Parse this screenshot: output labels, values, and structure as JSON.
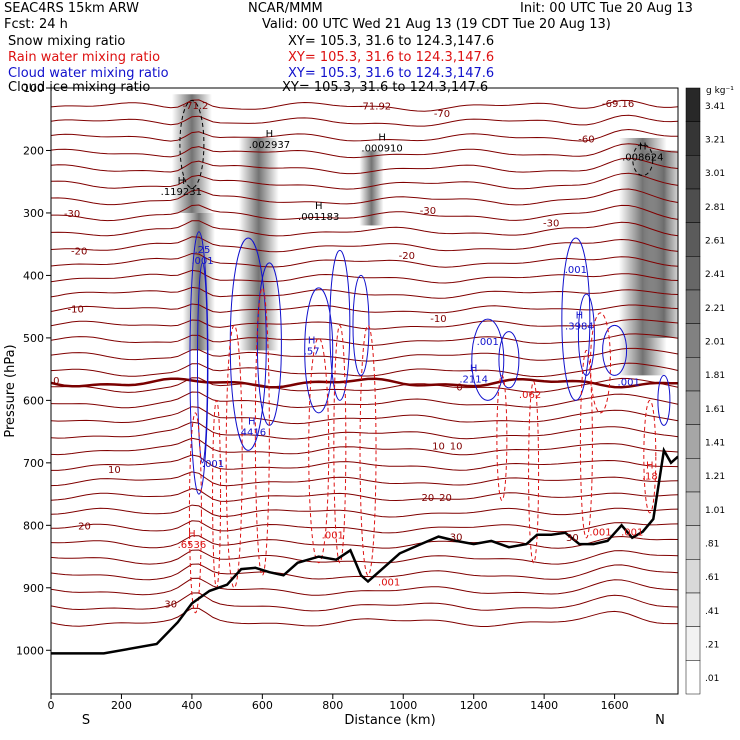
{
  "header": {
    "model": "SEAC4RS 15km ARW",
    "center": "NCAR/MMM",
    "init": "Init: 00 UTC Tue 20 Aug 13",
    "fcst": "Fcst:    24 h",
    "valid": "Valid: 00 UTC Wed 21 Aug 13 (19 CDT Tue 20 Aug 13)",
    "fields": [
      {
        "name": "Snow mixing ratio",
        "xy": "XY= 105.3, 31.6 to 124.3,147.6",
        "color": "#000000"
      },
      {
        "name": "Rain water mixing ratio",
        "xy": "XY= 105.3, 31.6 to 124.3,147.6",
        "color": "#dd1111"
      },
      {
        "name": "Cloud water mixing ratio",
        "xy": "XY= 105.3, 31.6 to 124.3,147.6",
        "color": "#1111cc"
      },
      {
        "name": "Cloud ice mixing ratio",
        "xy": "XY= 105.3, 31.6 to 124.3,147.6",
        "color": "#000000"
      }
    ]
  },
  "chart_data": {
    "type": "contour",
    "xlabel": "Distance (km)",
    "ylabel": "Pressure (hPa)",
    "xlim": [
      0,
      1780
    ],
    "ylim": [
      1070,
      100
    ],
    "x_ticks": [
      0,
      200,
      400,
      600,
      800,
      1000,
      1200,
      1400,
      1600
    ],
    "y_ticks": [
      1000,
      900,
      800,
      700,
      600,
      500,
      400,
      300,
      200,
      100
    ],
    "y_tick_labels": [
      "1000",
      "900",
      "800",
      "700",
      "600",
      "500",
      "400",
      "300",
      "200",
      "100"
    ],
    "x_ends": {
      "left": "S",
      "right": "N"
    },
    "colorbar": {
      "unit": "g kg⁻¹",
      "labels": [
        "3.41",
        "3.21",
        "3.01",
        "2.81",
        "2.61",
        "2.41",
        "2.21",
        "2.01",
        "1.81",
        "1.61",
        "1.41",
        "1.21",
        "1.01",
        ".81",
        ".61",
        ".41",
        ".21",
        ".01"
      ]
    },
    "terrain": [
      [
        0,
        1005
      ],
      [
        150,
        1005
      ],
      [
        300,
        990
      ],
      [
        360,
        955
      ],
      [
        400,
        925
      ],
      [
        450,
        905
      ],
      [
        500,
        895
      ],
      [
        540,
        870
      ],
      [
        580,
        868
      ],
      [
        620,
        875
      ],
      [
        660,
        880
      ],
      [
        700,
        860
      ],
      [
        760,
        850
      ],
      [
        810,
        855
      ],
      [
        850,
        840
      ],
      [
        880,
        880
      ],
      [
        900,
        890
      ],
      [
        940,
        870
      ],
      [
        990,
        845
      ],
      [
        1050,
        830
      ],
      [
        1100,
        818
      ],
      [
        1150,
        825
      ],
      [
        1200,
        830
      ],
      [
        1250,
        825
      ],
      [
        1300,
        835
      ],
      [
        1350,
        830
      ],
      [
        1380,
        815
      ],
      [
        1420,
        815
      ],
      [
        1460,
        812
      ],
      [
        1500,
        830
      ],
      [
        1540,
        830
      ],
      [
        1580,
        825
      ],
      [
        1620,
        800
      ],
      [
        1650,
        820
      ],
      [
        1680,
        810
      ],
      [
        1710,
        790
      ],
      [
        1740,
        680
      ],
      [
        1760,
        700
      ],
      [
        1780,
        690
      ]
    ],
    "isotherm_labels": [
      {
        "x": 410,
        "p": 127,
        "t": "-71.2"
      },
      {
        "x": 920,
        "p": 128,
        "t": "-71.92"
      },
      {
        "x": 1110,
        "p": 140,
        "t": "-70"
      },
      {
        "x": 1610,
        "p": 124,
        "t": "-69.16"
      },
      {
        "x": 1520,
        "p": 181,
        "t": "-60"
      },
      {
        "x": 60,
        "p": 300,
        "t": "-30"
      },
      {
        "x": 1420,
        "p": 315,
        "t": "-30"
      },
      {
        "x": 1070,
        "p": 295,
        "t": "-30"
      },
      {
        "x": 80,
        "p": 360,
        "t": "-20"
      },
      {
        "x": 1010,
        "p": 367,
        "t": "-20"
      },
      {
        "x": 70,
        "p": 453,
        "t": "-10"
      },
      {
        "x": 1100,
        "p": 468,
        "t": "-10"
      },
      {
        "x": 15,
        "p": 567,
        "t": "0"
      },
      {
        "x": 1160,
        "p": 578,
        "t": "0"
      },
      {
        "x": 1100,
        "p": 672,
        "t": "10"
      },
      {
        "x": 1150,
        "p": 672,
        "t": "10"
      },
      {
        "x": 180,
        "p": 710,
        "t": "10"
      },
      {
        "x": 1070,
        "p": 755,
        "t": "20"
      },
      {
        "x": 1120,
        "p": 755,
        "t": "20"
      },
      {
        "x": 95,
        "p": 800,
        "t": "20"
      },
      {
        "x": 1150,
        "p": 818,
        "t": "30"
      },
      {
        "x": 1480,
        "p": 819,
        "t": "30"
      },
      {
        "x": 340,
        "p": 925,
        "t": "30"
      }
    ],
    "max_labels": [
      {
        "x": 370,
        "p": 265,
        "t": "H\n.119231",
        "c": "#000000"
      },
      {
        "x": 620,
        "p": 190,
        "t": "H\n.002937",
        "c": "#000000"
      },
      {
        "x": 940,
        "p": 195,
        "t": "H\n.000910",
        "c": "#000000"
      },
      {
        "x": 760,
        "p": 305,
        "t": "H\n.001183",
        "c": "#000000"
      },
      {
        "x": 1680,
        "p": 210,
        "t": "H\n.008624",
        "c": "#000000"
      },
      {
        "x": 430,
        "p": 375,
        "t": ".25\n.001",
        "c": "#1111cc"
      },
      {
        "x": 1490,
        "p": 390,
        "t": ".001",
        "c": "#1111cc"
      },
      {
        "x": 1500,
        "p": 480,
        "t": "H\n.3984",
        "c": "#1111cc"
      },
      {
        "x": 1240,
        "p": 505,
        "t": ".001",
        "c": "#1111cc"
      },
      {
        "x": 740,
        "p": 520,
        "t": "H\n.57",
        "c": "#1111cc"
      },
      {
        "x": 1200,
        "p": 565,
        "t": "H\n.2114",
        "c": "#1111cc"
      },
      {
        "x": 1640,
        "p": 570,
        "t": ".001",
        "c": "#1111cc"
      },
      {
        "x": 570,
        "p": 650,
        "t": "H\n.4416",
        "c": "#1111cc"
      },
      {
        "x": 460,
        "p": 700,
        "t": ".001",
        "c": "#1111cc"
      },
      {
        "x": 400,
        "p": 830,
        "t": "H\n.6536",
        "c": "#dd1111"
      },
      {
        "x": 1360,
        "p": 590,
        "t": ".062",
        "c": "#dd1111"
      },
      {
        "x": 1700,
        "p": 720,
        "t": "H\n.18",
        "c": "#dd1111"
      },
      {
        "x": 1560,
        "p": 810,
        "t": ".001",
        "c": "#dd1111"
      },
      {
        "x": 1650,
        "p": 810,
        "t": ".001",
        "c": "#dd1111"
      },
      {
        "x": 960,
        "p": 890,
        "t": ".001",
        "c": "#dd1111"
      },
      {
        "x": 800,
        "p": 815,
        "t": ".001",
        "c": "#dd1111"
      }
    ]
  }
}
